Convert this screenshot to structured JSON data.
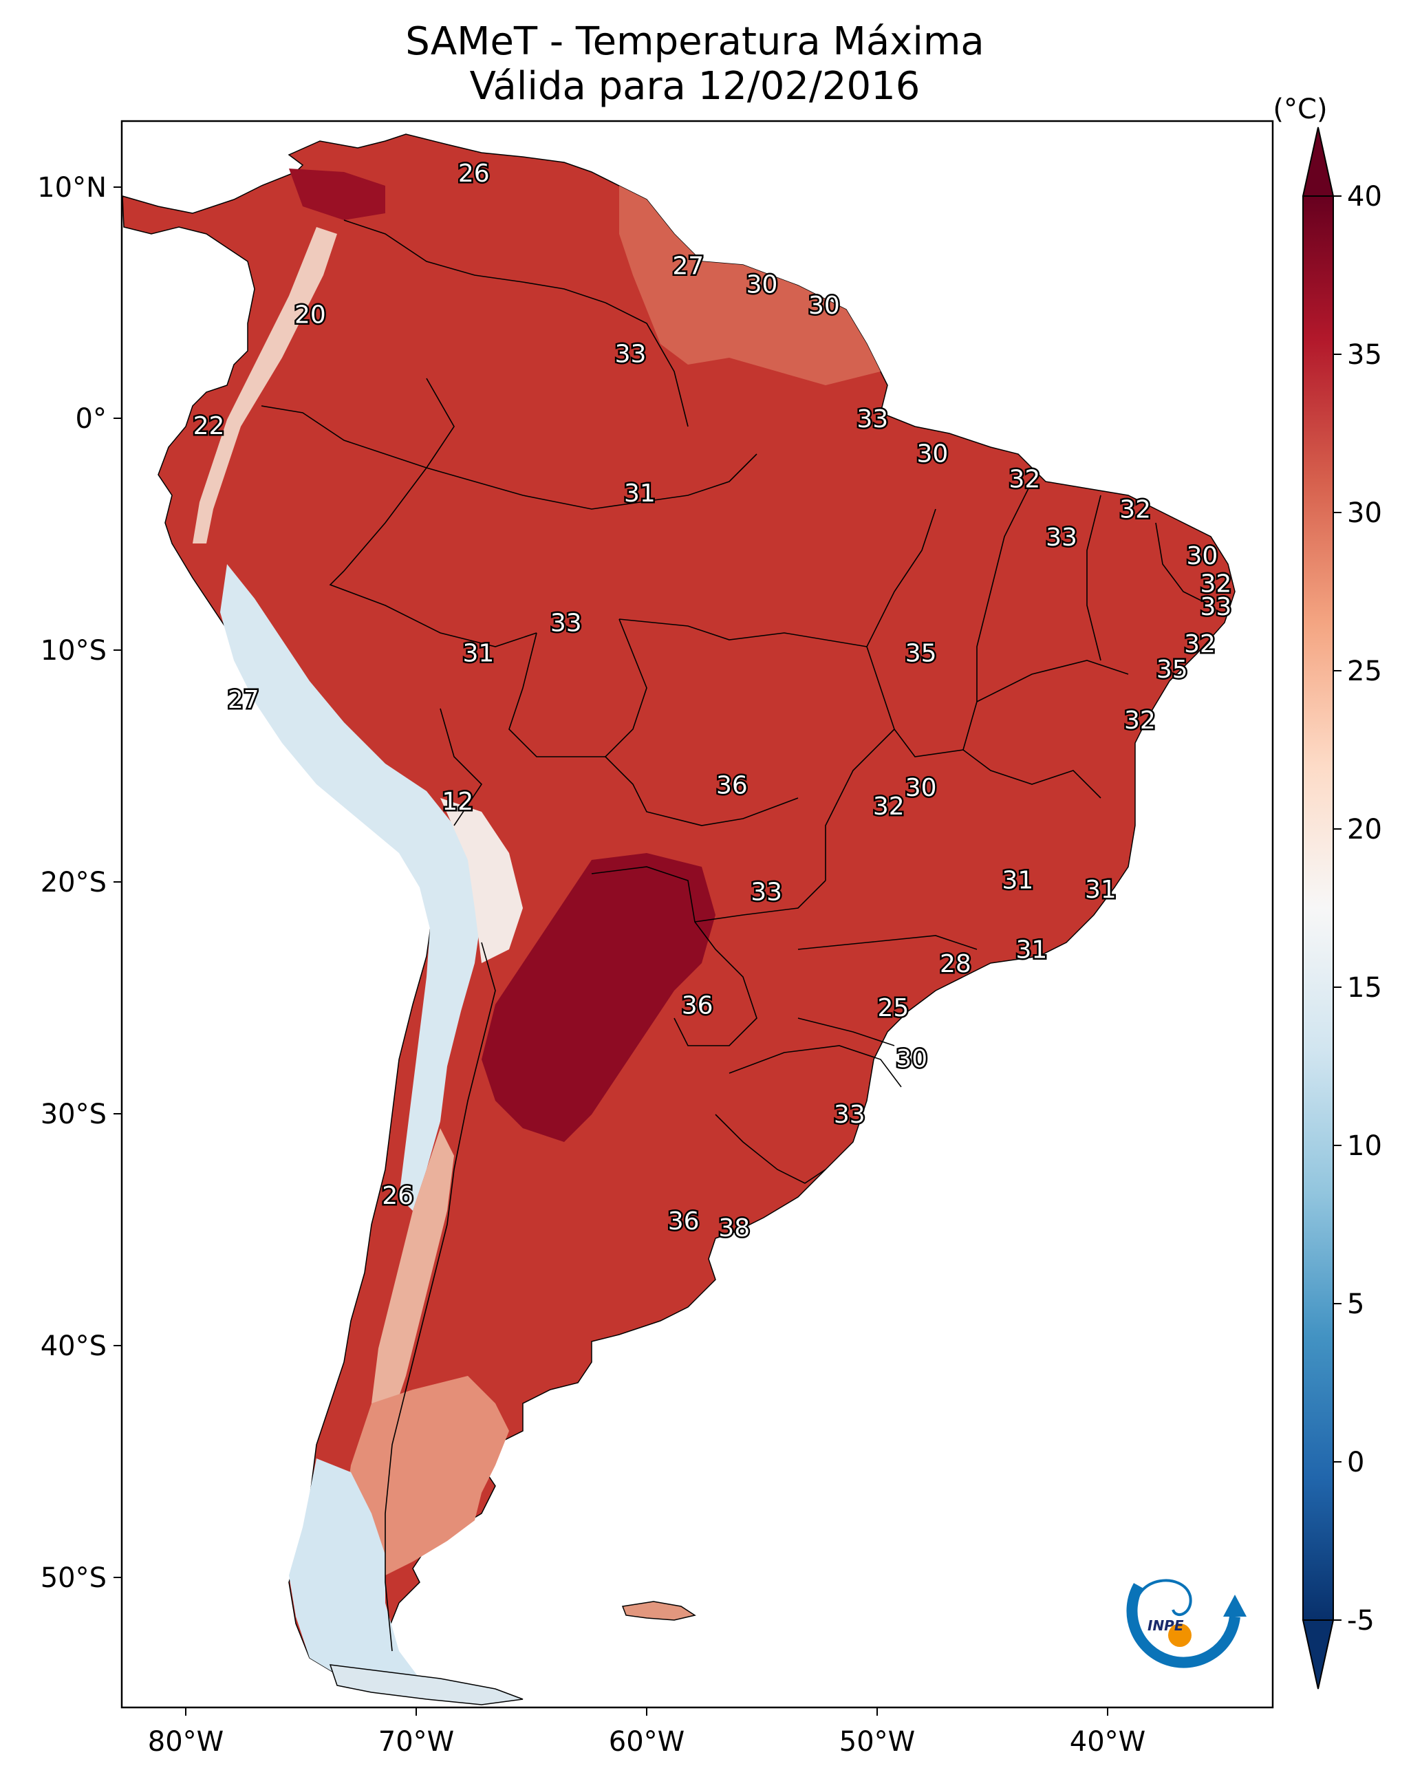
{
  "title_line1": "SAMeT - Temperatura Máxima",
  "title_line2": "Válida para 12/02/2016",
  "colorbar": {
    "unit_label": "(°C)",
    "min": -5,
    "max": 40,
    "ticks": [
      "-5",
      "0",
      "5",
      "10",
      "15",
      "20",
      "25",
      "30",
      "35",
      "40"
    ],
    "extend": "both",
    "colormap": [
      "#08306b",
      "#2166ac",
      "#4393c3",
      "#92c5de",
      "#d1e5f0",
      "#f7f7f7",
      "#fddbc7",
      "#f4a582",
      "#d6604d",
      "#b2182b",
      "#67001f"
    ]
  },
  "axes": {
    "lon_ticks": [
      "80°W",
      "70°W",
      "60°W",
      "50°W",
      "40°W"
    ],
    "lat_ticks": [
      "10°N",
      "0°",
      "10°S",
      "20°S",
      "30°S",
      "40°S",
      "50°S"
    ]
  },
  "map_colors": {
    "land_hot": "#b2182b",
    "land_very_hot": "#8e0b23",
    "land_warm": "#d6604d",
    "andes_cool": "#f4e4de",
    "andes_cold": "#cde3ef",
    "ocean": "#ffffff",
    "border": "#000000"
  },
  "temperature_labels": [
    {
      "text": "26",
      "lon": -67.5,
      "lat": 10.6
    },
    {
      "text": "27",
      "lon": -58.2,
      "lat": 6.6
    },
    {
      "text": "30",
      "lon": -55.0,
      "lat": 5.8
    },
    {
      "text": "30",
      "lon": -52.3,
      "lat": 4.9
    },
    {
      "text": "20",
      "lon": -74.6,
      "lat": 4.5
    },
    {
      "text": "33",
      "lon": -60.7,
      "lat": 2.8
    },
    {
      "text": "22",
      "lon": -79.0,
      "lat": -0.3
    },
    {
      "text": "33",
      "lon": -50.2,
      "lat": 0.0
    },
    {
      "text": "30",
      "lon": -47.6,
      "lat": -1.5
    },
    {
      "text": "32",
      "lon": -43.6,
      "lat": -2.6
    },
    {
      "text": "31",
      "lon": -60.3,
      "lat": -3.2
    },
    {
      "text": "32",
      "lon": -38.8,
      "lat": -3.9
    },
    {
      "text": "33",
      "lon": -42.0,
      "lat": -5.1
    },
    {
      "text": "30",
      "lon": -35.9,
      "lat": -5.9
    },
    {
      "text": "32",
      "lon": -35.3,
      "lat": -7.1
    },
    {
      "text": "33",
      "lon": -35.3,
      "lat": -8.1
    },
    {
      "text": "33",
      "lon": -63.5,
      "lat": -8.8
    },
    {
      "text": "32",
      "lon": -36.0,
      "lat": -9.7
    },
    {
      "text": "31",
      "lon": -67.3,
      "lat": -10.1
    },
    {
      "text": "35",
      "lon": -48.1,
      "lat": -10.1
    },
    {
      "text": "35",
      "lon": -37.2,
      "lat": -10.8
    },
    {
      "text": "27",
      "lon": -77.5,
      "lat": -12.1
    },
    {
      "text": "32",
      "lon": -38.6,
      "lat": -13.0
    },
    {
      "text": "36",
      "lon": -56.3,
      "lat": -15.8
    },
    {
      "text": "30",
      "lon": -48.1,
      "lat": -15.9
    },
    {
      "text": "32",
      "lon": -49.5,
      "lat": -16.7
    },
    {
      "text": "12",
      "lon": -68.2,
      "lat": -16.5
    },
    {
      "text": "31",
      "lon": -43.9,
      "lat": -19.9
    },
    {
      "text": "31",
      "lon": -40.3,
      "lat": -20.3
    },
    {
      "text": "33",
      "lon": -54.8,
      "lat": -20.4
    },
    {
      "text": "28",
      "lon": -46.6,
      "lat": -23.5
    },
    {
      "text": "31",
      "lon": -43.3,
      "lat": -22.9
    },
    {
      "text": "36",
      "lon": -57.8,
      "lat": -25.3
    },
    {
      "text": "25",
      "lon": -49.3,
      "lat": -25.4
    },
    {
      "text": "30",
      "lon": -48.5,
      "lat": -27.6
    },
    {
      "text": "33",
      "lon": -51.2,
      "lat": -30.0
    },
    {
      "text": "26",
      "lon": -70.8,
      "lat": -33.5
    },
    {
      "text": "36",
      "lon": -58.4,
      "lat": -34.6
    },
    {
      "text": "38",
      "lon": -56.2,
      "lat": -34.9
    }
  ],
  "logo": {
    "text": "INPE"
  }
}
